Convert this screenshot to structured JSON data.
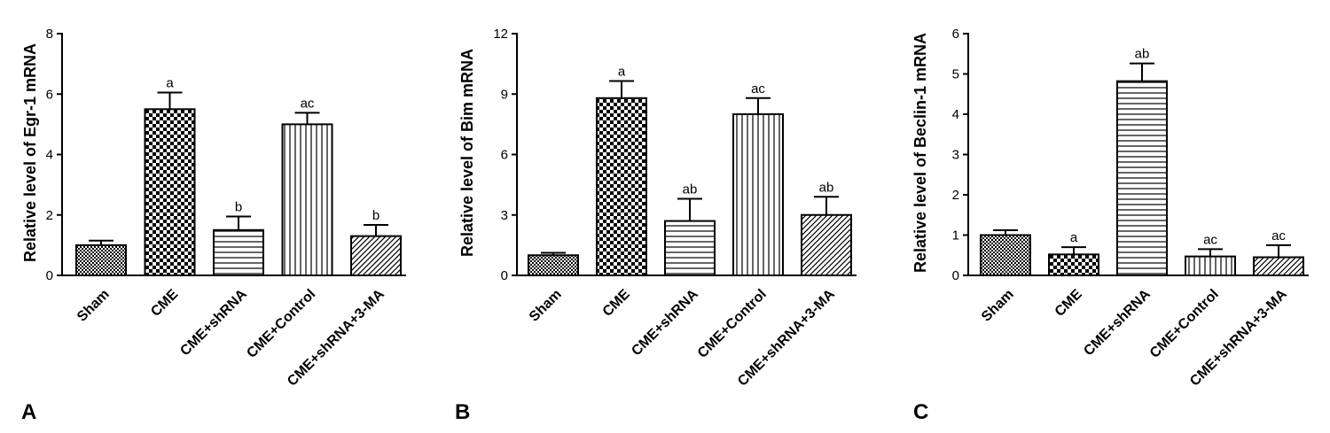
{
  "figure": {
    "background": "#ffffff",
    "ink": "#000000"
  },
  "chart_data": [
    {
      "panel": "A",
      "type": "bar",
      "ylabel": "Relative level of Egr-1 mRNA",
      "categories": [
        "Sham",
        "CME",
        "CME+shRNA",
        "CME+Control",
        "CME+shRNA+3-MA"
      ],
      "values": [
        1.0,
        5.5,
        1.5,
        5.0,
        1.3
      ],
      "errors": [
        0.15,
        0.55,
        0.45,
        0.38,
        0.37
      ],
      "annotations": [
        "",
        "a",
        "b",
        "ac",
        "b"
      ],
      "patterns": [
        "small-checker",
        "checker",
        "hlines",
        "vlines",
        "diagonal"
      ],
      "ylim": [
        0,
        8
      ],
      "yticks": [
        0,
        2,
        4,
        6,
        8
      ],
      "grid": false
    },
    {
      "panel": "B",
      "type": "bar",
      "ylabel": "Relative level of Bim mRNA",
      "categories": [
        "Sham",
        "CME",
        "CME+shRNA",
        "CME+Control",
        "CME+shRNA+3-MA"
      ],
      "values": [
        1.0,
        8.8,
        2.7,
        8.0,
        3.0
      ],
      "errors": [
        0.12,
        0.85,
        1.1,
        0.8,
        0.9
      ],
      "annotations": [
        "",
        "a",
        "ab",
        "ac",
        "ab"
      ],
      "patterns": [
        "small-checker",
        "checker",
        "hlines",
        "vlines",
        "diagonal"
      ],
      "ylim": [
        0,
        12
      ],
      "yticks": [
        0,
        3,
        6,
        9,
        12
      ],
      "grid": false
    },
    {
      "panel": "C",
      "type": "bar",
      "ylabel": "Relative level of Beclin-1 mRNA",
      "categories": [
        "Sham",
        "CME",
        "CME+shRNA",
        "CME+Control",
        "CME+shRNA+3-MA"
      ],
      "values": [
        1.0,
        0.52,
        4.82,
        0.47,
        0.45
      ],
      "errors": [
        0.12,
        0.18,
        0.44,
        0.18,
        0.3
      ],
      "annotations": [
        "",
        "a",
        "ab",
        "ac",
        "ac"
      ],
      "patterns": [
        "small-checker",
        "checker",
        "hlines",
        "vlines",
        "diagonal"
      ],
      "ylim": [
        0,
        6
      ],
      "yticks": [
        0,
        1,
        2,
        3,
        4,
        5,
        6
      ],
      "grid": false
    }
  ]
}
